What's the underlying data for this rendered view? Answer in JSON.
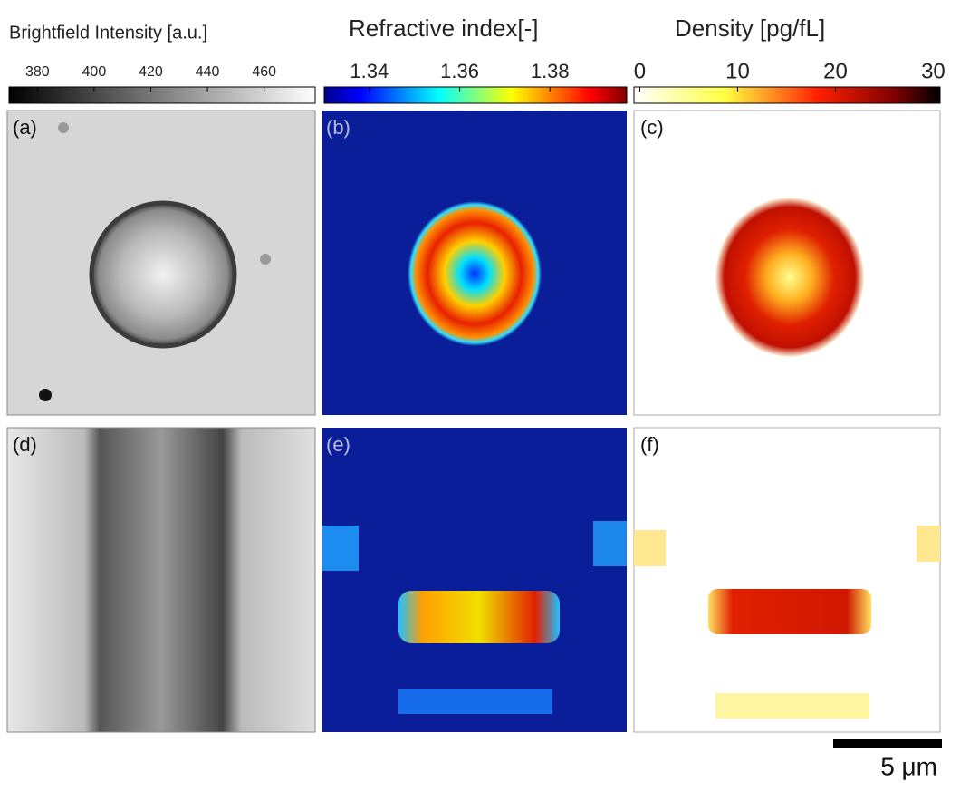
{
  "colorbars": [
    {
      "title": "Brightfield Intensity [a.u.]",
      "range": [
        370,
        478
      ],
      "ticks": [
        380,
        400,
        420,
        440,
        460
      ]
    },
    {
      "title": "Refractive index[-]",
      "range": [
        1.33,
        1.397
      ],
      "ticks": [
        1.34,
        1.36,
        1.38
      ]
    },
    {
      "title": "Density [pg/fL]",
      "range": [
        -0.6,
        30.7
      ],
      "ticks": [
        0,
        10,
        20,
        30
      ]
    }
  ],
  "panels": [
    "(a)",
    "(b)",
    "(c)",
    "(d)",
    "(e)",
    "(f)"
  ],
  "scale_bar": {
    "label": "5 μm"
  }
}
